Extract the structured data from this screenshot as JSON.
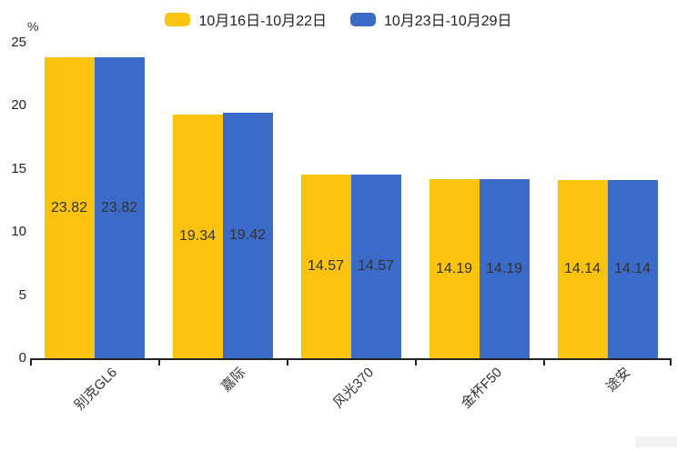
{
  "chart_data": {
    "type": "bar",
    "categories": [
      "别克GL6",
      "嘉际",
      "风光370",
      "金杯F50",
      "途安"
    ],
    "series": [
      {
        "name": "10月16日-10月22日",
        "color": "#FBC30D",
        "values": [
          23.82,
          19.34,
          14.57,
          14.19,
          14.14
        ]
      },
      {
        "name": "10月23日-10月29日",
        "color": "#3A6BC9",
        "values": [
          23.82,
          19.42,
          14.57,
          14.19,
          14.14
        ]
      }
    ],
    "value_labels": [
      [
        "23.82",
        "19.34",
        "14.57",
        "14.19",
        "14.14"
      ],
      [
        "23.82",
        "19.42",
        "14.57",
        "14.19",
        "14.14"
      ]
    ],
    "title": "",
    "xlabel": "",
    "ylabel": "%",
    "ylim": [
      0,
      25
    ],
    "yticks": [
      0,
      5,
      10,
      15,
      20,
      25
    ],
    "grid": false,
    "legend_position": "top",
    "bar_label_color": "#333333",
    "axis_color": "#222222"
  }
}
